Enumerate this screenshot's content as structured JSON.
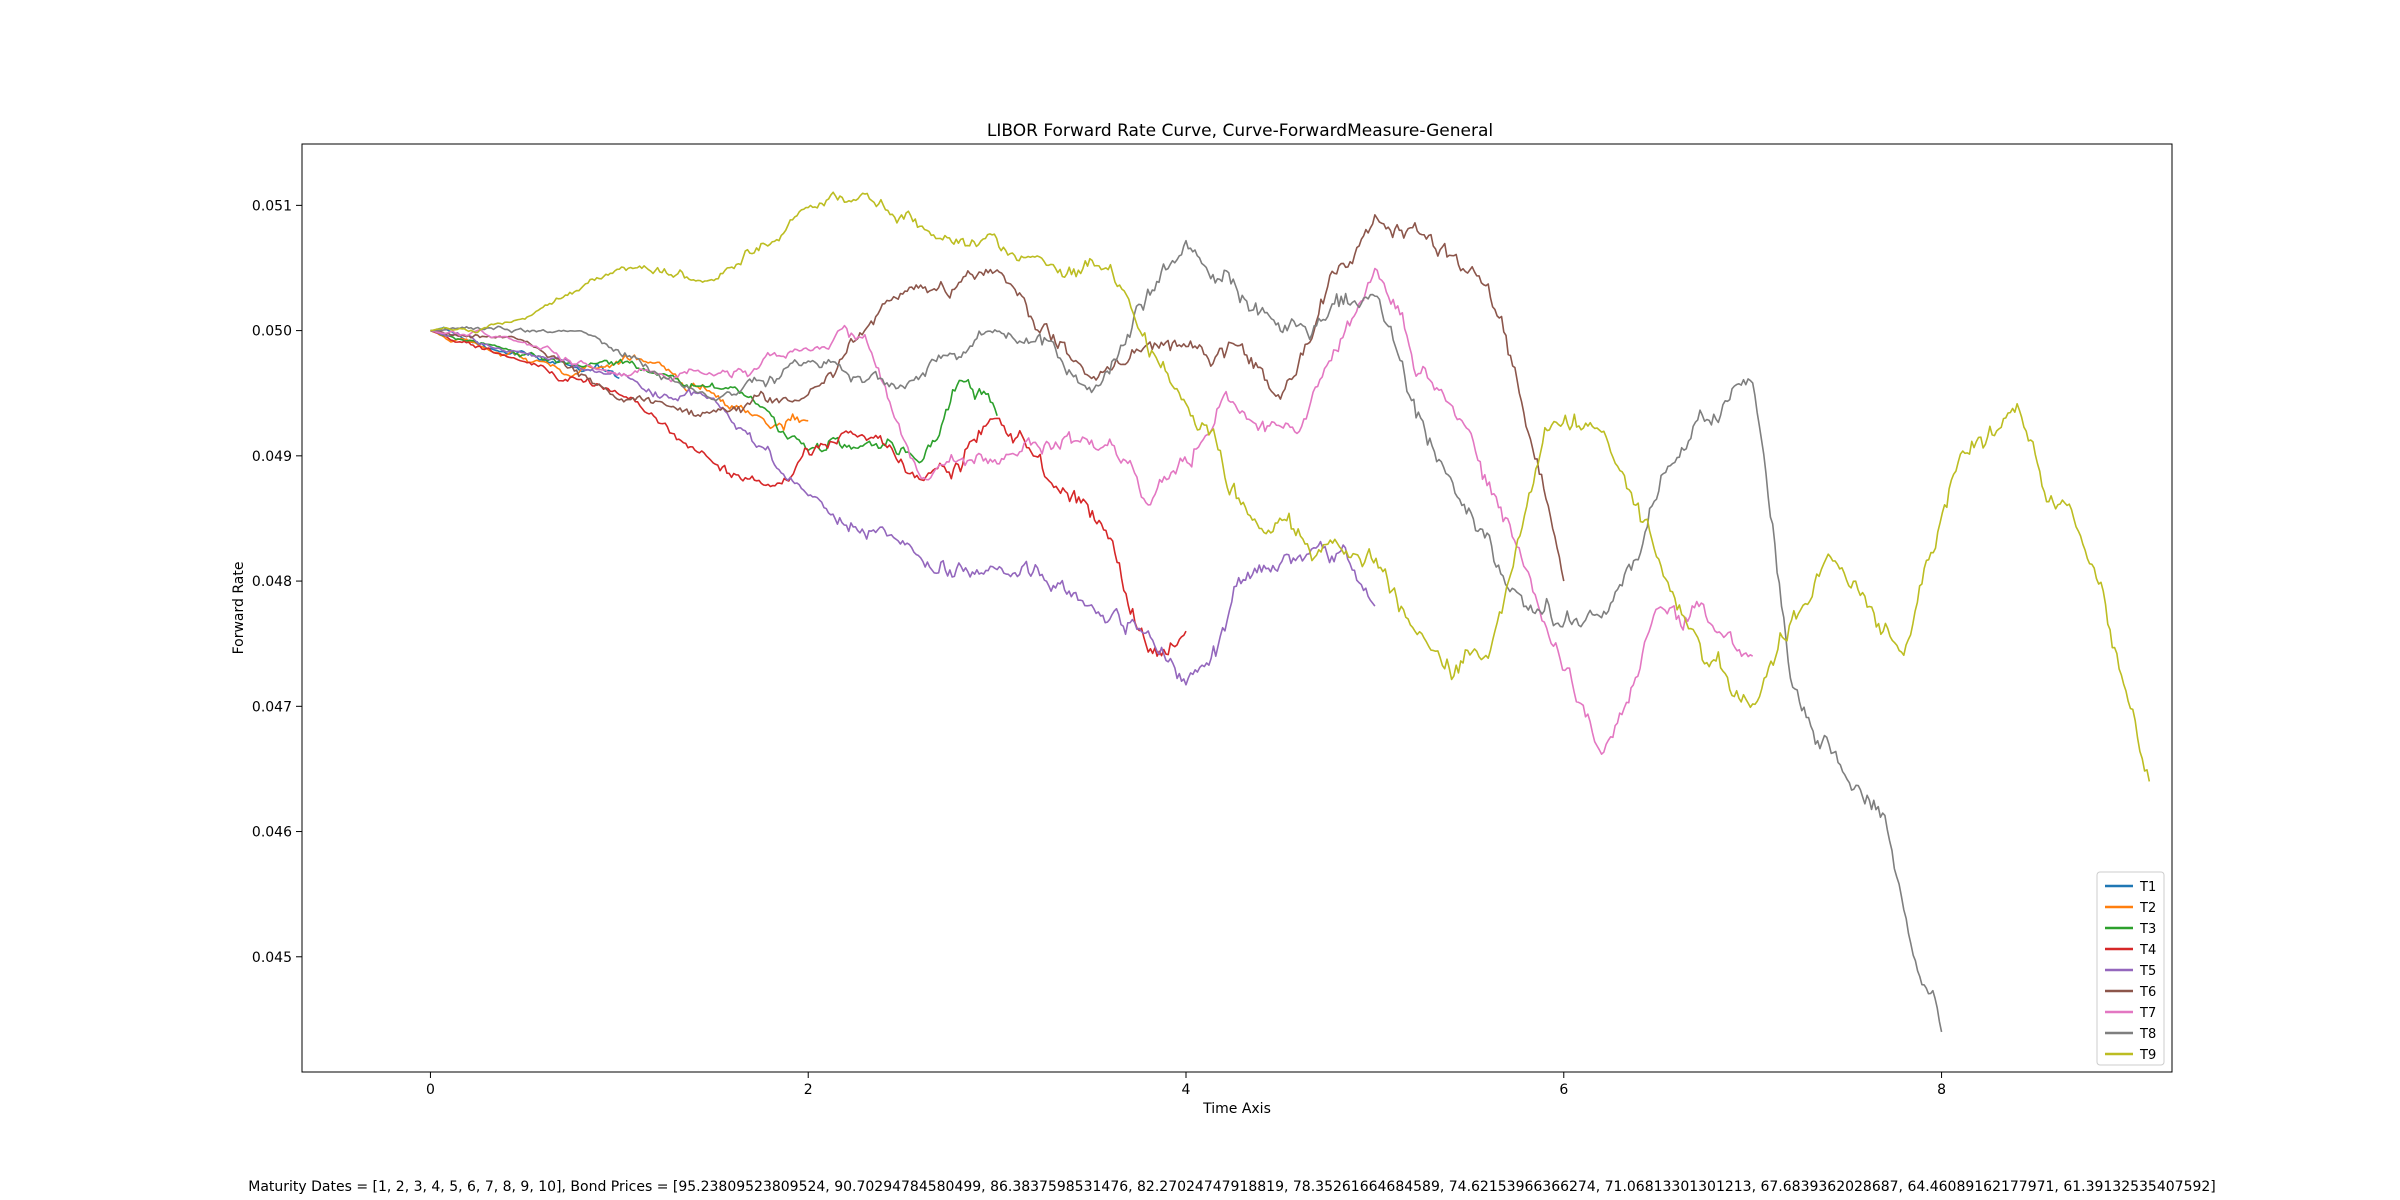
{
  "chart_data": {
    "type": "line",
    "title": "LIBOR Forward Rate Curve, Curve-ForwardMeasure-General",
    "xlabel": "Time Axis",
    "ylabel": "Forward Rate",
    "xlim": [
      -0.68,
      9.22
    ],
    "ylim": [
      0.04408,
      0.05149
    ],
    "xticks": [
      0,
      2,
      4,
      6,
      8
    ],
    "xtick_labels": [
      "0",
      "2",
      "4",
      "6",
      "8"
    ],
    "yticks": [
      0.045,
      0.046,
      0.047,
      0.048,
      0.049,
      0.05,
      0.051
    ],
    "ytick_labels": [
      "0.045",
      "0.046",
      "0.047",
      "0.048",
      "0.049",
      "0.050",
      "0.051"
    ],
    "grid": false,
    "legend": "lower-right",
    "series": [
      {
        "name": "T1",
        "color": "#1f77b4",
        "x": [
          0,
          0.2,
          0.4,
          0.6,
          0.8,
          1.0
        ],
        "y": [
          0.05,
          0.04992,
          0.04982,
          0.04976,
          0.04968,
          0.04962
        ]
      },
      {
        "name": "T2",
        "color": "#ff7f0e",
        "x": [
          0,
          0.3,
          0.6,
          0.9,
          1.2,
          1.5,
          1.8,
          2.0
        ],
        "y": [
          0.05,
          0.04985,
          0.04975,
          0.0497,
          0.04975,
          0.0495,
          0.04922,
          0.04928
        ]
      },
      {
        "name": "T3",
        "color": "#2ca02c",
        "x": [
          0,
          0.4,
          0.8,
          1.2,
          1.6,
          2.0,
          2.3,
          2.6,
          2.8,
          3.0
        ],
        "y": [
          0.05,
          0.04985,
          0.04972,
          0.04965,
          0.04955,
          0.04905,
          0.0491,
          0.04895,
          0.04962,
          0.04932
        ]
      },
      {
        "name": "T4",
        "color": "#d62728",
        "x": [
          0,
          0.5,
          1.0,
          1.4,
          1.8,
          2.2,
          2.6,
          3.0,
          3.3,
          3.6,
          3.8,
          4.0
        ],
        "y": [
          0.05,
          0.04975,
          0.0495,
          0.04905,
          0.04875,
          0.0492,
          0.0488,
          0.0493,
          0.04875,
          0.04835,
          0.04745,
          0.0476
        ]
      },
      {
        "name": "T5",
        "color": "#9467bd",
        "x": [
          0,
          0.5,
          1.0,
          1.5,
          2.0,
          2.5,
          3.0,
          3.5,
          3.8,
          4.0,
          4.4,
          4.7,
          5.0
        ],
        "y": [
          0.05,
          0.04982,
          0.04965,
          0.04945,
          0.0487,
          0.0483,
          0.0481,
          0.0478,
          0.0476,
          0.0472,
          0.0481,
          0.0483,
          0.0478
        ]
      },
      {
        "name": "T6",
        "color": "#8c564b",
        "x": [
          0,
          0.5,
          1.0,
          1.5,
          2.0,
          2.5,
          3.0,
          3.5,
          4.0,
          4.5,
          5.0,
          5.2,
          5.6,
          5.8,
          6.0
        ],
        "y": [
          0.05,
          0.04992,
          0.04945,
          0.04935,
          0.0495,
          0.0503,
          0.0505,
          0.0496,
          0.0499,
          0.04945,
          0.0509,
          0.05085,
          0.05035,
          0.04925,
          0.048
        ]
      },
      {
        "name": "T7",
        "color": "#e377c2",
        "x": [
          0,
          0.5,
          1.0,
          1.5,
          2.0,
          2.3,
          2.6,
          3.0,
          3.5,
          3.8,
          4.2,
          4.6,
          5.0,
          5.4,
          5.8,
          6.2,
          6.5,
          6.8,
          7.0
        ],
        "y": [
          0.05,
          0.0499,
          0.04965,
          0.04965,
          0.04985,
          0.04995,
          0.0488,
          0.04895,
          0.0491,
          0.0486,
          0.0495,
          0.0492,
          0.0505,
          0.0494,
          0.0481,
          0.0466,
          0.0478,
          0.0476,
          0.0474
        ]
      },
      {
        "name": "T8",
        "color": "#7f7f7f",
        "x": [
          0,
          0.8,
          1.5,
          2.0,
          2.5,
          3.0,
          3.5,
          4.0,
          4.5,
          5.0,
          5.4,
          5.8,
          6.2,
          6.6,
          7.0,
          7.2,
          7.5,
          7.7,
          7.85,
          8.0
        ],
        "y": [
          0.05,
          0.05,
          0.04945,
          0.04975,
          0.04955,
          0.05,
          0.0495,
          0.0507,
          0.05,
          0.0503,
          0.0488,
          0.0478,
          0.0477,
          0.049,
          0.0496,
          0.0472,
          0.0464,
          0.0461,
          0.045,
          0.0444
        ]
      },
      {
        "name": "T9",
        "color": "#bcbd22",
        "x": [
          0,
          0.5,
          1.0,
          1.5,
          2.0,
          2.3,
          2.7,
          3.2,
          3.6,
          4.0,
          4.4,
          4.8,
          5.2,
          5.6,
          5.9,
          6.2,
          6.6,
          7.0,
          7.4,
          7.8,
          8.1,
          8.4,
          8.7,
          9.0,
          9.1
        ],
        "y": [
          0.05,
          0.0501,
          0.0505,
          0.0504,
          0.051,
          0.0511,
          0.05075,
          0.0506,
          0.0505,
          0.0494,
          0.0484,
          0.0483,
          0.0476,
          0.0474,
          0.0492,
          0.0492,
          0.0478,
          0.047,
          0.0482,
          0.0474,
          0.049,
          0.0494,
          0.0485,
          0.047,
          0.0464
        ]
      }
    ]
  },
  "footer_text": "Maturity Dates = [1, 2, 3, 4, 5, 6, 7, 8, 9, 10], Bond Prices = [95.23809523809524, 90.70294784580499, 86.3837598531476, 82.27024747918819, 78.35261664684589, 74.62153966366274, 71.06813301301213, 67.6839362028687, 64.46089162177971, 61.39132535407592]"
}
